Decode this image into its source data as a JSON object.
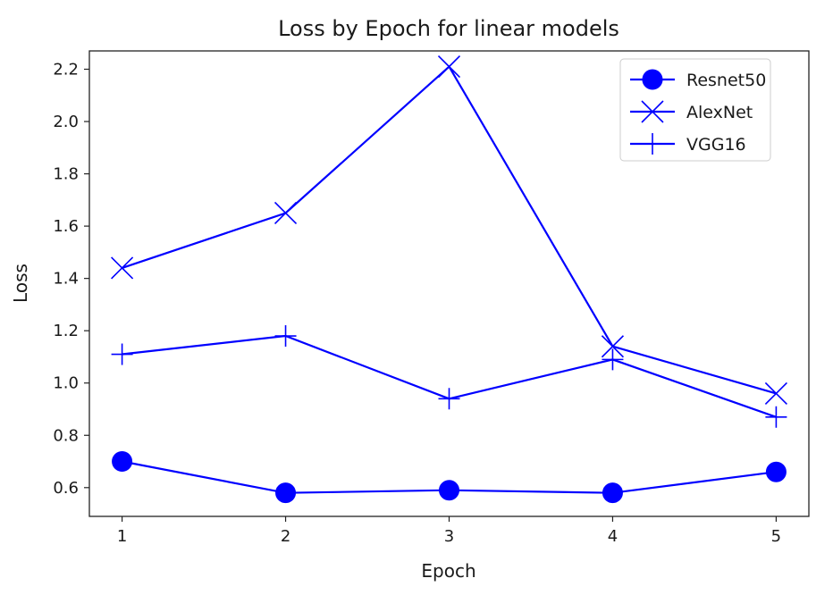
{
  "chart_data": {
    "type": "line",
    "title": "Loss by Epoch for linear models",
    "xlabel": "Epoch",
    "ylabel": "Loss",
    "x": [
      1,
      2,
      3,
      4,
      5
    ],
    "x_ticks": [
      "1",
      "2",
      "3",
      "4",
      "5"
    ],
    "y_ticks": [
      "0.6",
      "0.8",
      "1.0",
      "1.2",
      "1.4",
      "1.6",
      "1.8",
      "2.0",
      "2.2"
    ],
    "xlim": [
      0.8,
      5.2
    ],
    "ylim": [
      0.49,
      2.27
    ],
    "grid": false,
    "legend_position": "top-right",
    "series": [
      {
        "name": "Resnet50",
        "marker": "circle",
        "color": "#0000ff",
        "values": [
          0.7,
          0.58,
          0.59,
          0.58,
          0.66
        ]
      },
      {
        "name": "AlexNet",
        "marker": "x",
        "color": "#0000ff",
        "values": [
          1.44,
          1.65,
          2.21,
          1.14,
          0.96
        ]
      },
      {
        "name": "VGG16",
        "marker": "plus",
        "color": "#0000ff",
        "values": [
          1.11,
          1.18,
          0.94,
          1.09,
          0.87
        ]
      }
    ]
  }
}
